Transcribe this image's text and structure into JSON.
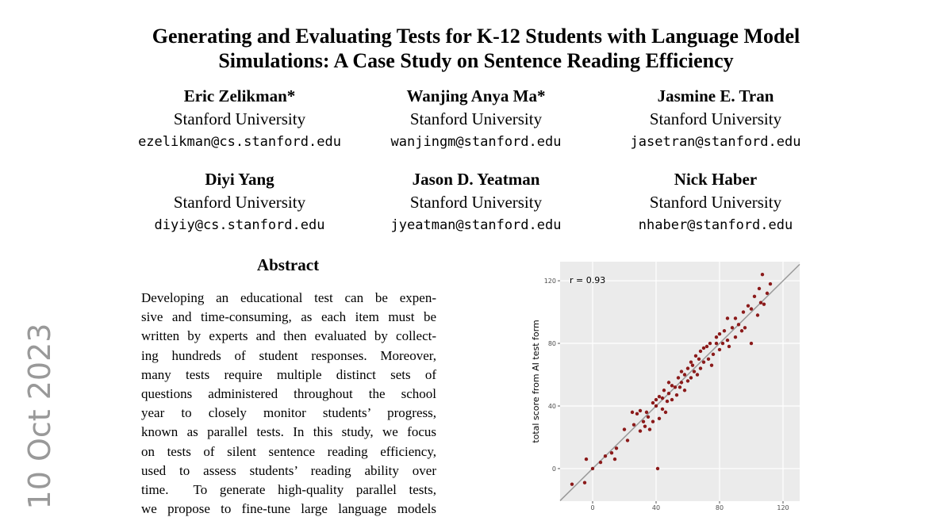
{
  "header": {
    "title_lines": [
      "Generating and Evaluating Tests for K-12 Students with Language Model",
      "Simulations: A Case Study on Sentence Reading Efficiency"
    ]
  },
  "authors": [
    {
      "name": "Eric Zelikman*",
      "affiliation": "Stanford University",
      "email": "ezelikman@cs.stanford.edu"
    },
    {
      "name": "Wanjing Anya Ma*",
      "affiliation": "Stanford University",
      "email": "wanjingm@stanford.edu"
    },
    {
      "name": "Jasmine E. Tran",
      "affiliation": "Stanford University",
      "email": "jasetran@stanford.edu"
    },
    {
      "name": "Diyi Yang",
      "affiliation": "Stanford University",
      "email": "diyiy@cs.stanford.edu"
    },
    {
      "name": "Jason D. Yeatman",
      "affiliation": "Stanford University",
      "email": "jyeatman@stanford.edu"
    },
    {
      "name": "Nick Haber",
      "affiliation": "Stanford University",
      "email": "nhaber@stanford.edu"
    }
  ],
  "abstract": {
    "heading": "Abstract",
    "lines": [
      "Developing an educational test can be expen-",
      "sive and time-consuming, as each item must be",
      "written by experts and then evaluated by collect-",
      "ing hundreds of student responses. Moreover,",
      "many tests require multiple distinct sets of",
      "questions administered throughout the school",
      "year to closely monitor students’ progress,",
      "known as parallel tests. In this study, we focus",
      "on tests of silent sentence reading efficiency,",
      "used to assess students’ reading ability over",
      "time.  To generate high-quality parallel tests,",
      "we propose to fine-tune large language models"
    ]
  },
  "side_date": "10 Oct 2023",
  "chart_data": {
    "type": "scatter",
    "y_label": "total score from AI test form",
    "annotation": "r = 0.93",
    "color": "#8b1a1a",
    "x": [
      -13,
      -5,
      -4,
      0,
      5,
      8,
      12,
      14,
      15,
      20,
      22,
      25,
      26,
      28,
      30,
      30,
      32,
      33,
      34,
      35,
      36,
      38,
      38,
      40,
      40,
      41,
      42,
      42,
      44,
      44,
      45,
      46,
      47,
      48,
      48,
      50,
      50,
      52,
      53,
      54,
      55,
      56,
      56,
      58,
      58,
      60,
      60,
      62,
      62,
      63,
      64,
      65,
      66,
      67,
      68,
      68,
      70,
      70,
      72,
      73,
      74,
      75,
      76,
      78,
      78,
      80,
      80,
      82,
      83,
      85,
      85,
      86,
      88,
      90,
      90,
      92,
      94,
      95,
      96,
      98,
      100,
      100,
      102,
      104,
      105,
      106,
      107,
      108,
      110,
      112
    ],
    "values": [
      -10,
      -9,
      6,
      0,
      4,
      8,
      10,
      6,
      13,
      25,
      18,
      36,
      28,
      35,
      24,
      37,
      30,
      27,
      36,
      33,
      25,
      42,
      30,
      40,
      44,
      0,
      32,
      46,
      45,
      38,
      50,
      36,
      43,
      48,
      55,
      53,
      44,
      52,
      47,
      58,
      52,
      55,
      62,
      50,
      60,
      56,
      64,
      58,
      68,
      66,
      62,
      72,
      60,
      70,
      75,
      64,
      68,
      77,
      78,
      70,
      80,
      66,
      73,
      80,
      84,
      76,
      86,
      80,
      88,
      82,
      96,
      78,
      90,
      84,
      96,
      92,
      88,
      100,
      90,
      104,
      80,
      102,
      110,
      98,
      115,
      106,
      124,
      105,
      112,
      118
    ],
    "xlim": [
      -20.5,
      130.5
    ],
    "ylim": [
      -20.8,
      132.2
    ],
    "xticks": [
      0,
      40,
      80,
      120
    ],
    "yticks": [
      0,
      40,
      80,
      120
    ],
    "grid": true
  }
}
